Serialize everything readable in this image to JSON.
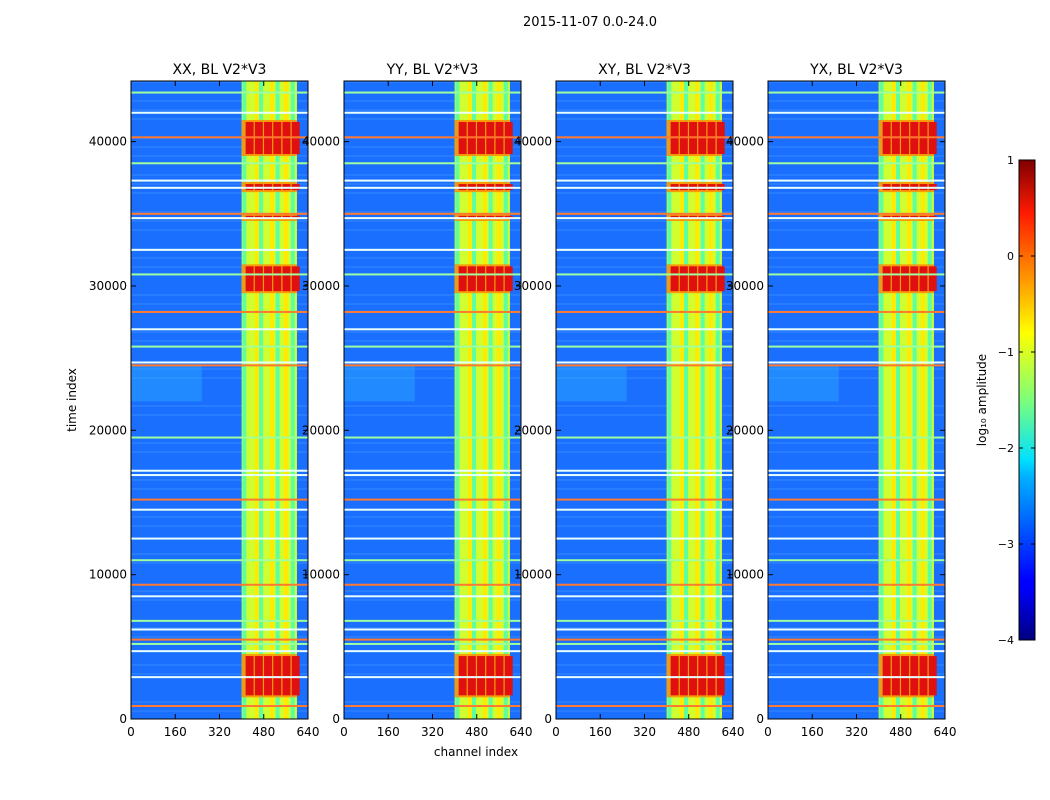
{
  "figure": {
    "suptitle": "2015-11-07 0.0-24.0"
  },
  "chart_data": {
    "type": "heatmap",
    "xlabel": "channel index",
    "ylabel": "time index",
    "xlim": [
      0,
      640
    ],
    "ylim": [
      0,
      44200
    ],
    "xticks": [
      0,
      160,
      320,
      480,
      640
    ],
    "yticks": [
      0,
      10000,
      20000,
      30000,
      40000
    ],
    "xtick_labels": [
      "0",
      "160",
      "320",
      "480",
      "640"
    ],
    "ytick_labels": [
      "0",
      "10000",
      "20000",
      "30000",
      "40000"
    ],
    "panels": [
      {
        "title": "XX, BL V2*V3",
        "pol": "XX"
      },
      {
        "title": "YY, BL V2*V3",
        "pol": "YY"
      },
      {
        "title": "XY, BL V2*V3",
        "pol": "XY"
      },
      {
        "title": "YX, BL V2*V3",
        "pol": "YX"
      }
    ],
    "rfi_band_channels": [
      400,
      600
    ],
    "rfi_columns_channels": [
      410,
      455,
      470,
      510,
      530,
      560,
      585
    ],
    "bright_time_bands": [
      [
        1500,
        4500
      ],
      [
        29500,
        31500
      ],
      [
        34500,
        35000
      ],
      [
        36500,
        37200
      ],
      [
        39000,
        41500
      ]
    ],
    "flagged_time_rows": [
      900,
      2900,
      4700,
      5200,
      5500,
      6200,
      6800,
      8500,
      9300,
      11000,
      12500,
      14500,
      15200,
      16900,
      17200,
      19500,
      24500,
      24700,
      25800,
      27000,
      28200,
      30800,
      32500,
      34700,
      35000,
      36800,
      37300,
      38500,
      40300,
      42000,
      43400
    ],
    "colorbar": {
      "label": "log₁₀ amplitude",
      "range": [
        -4,
        1
      ],
      "ticks": [
        1,
        0,
        -1,
        -2,
        -3,
        -4
      ],
      "tick_labels": [
        "1",
        "0",
        "−1",
        "−2",
        "−3",
        "−4"
      ],
      "colormap": "jet"
    }
  }
}
